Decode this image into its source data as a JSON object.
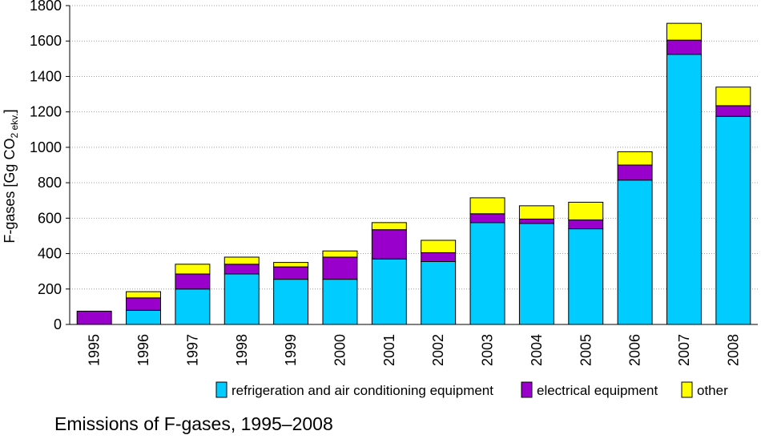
{
  "chart_data": {
    "type": "bar",
    "stacked": true,
    "categories": [
      "1995",
      "1996",
      "1997",
      "1998",
      "1999",
      "2000",
      "2001",
      "2002",
      "2003",
      "2004",
      "2005",
      "2006",
      "2007",
      "2008"
    ],
    "series": [
      {
        "name": "refrigeration and air conditioning equipment",
        "color": "#00ccff",
        "values": [
          0,
          80,
          200,
          285,
          255,
          255,
          370,
          355,
          575,
          570,
          540,
          815,
          1525,
          1175
        ]
      },
      {
        "name": "electrical equipment",
        "color": "#9900cc",
        "values": [
          75,
          70,
          85,
          55,
          70,
          125,
          165,
          50,
          50,
          25,
          50,
          85,
          80,
          60
        ]
      },
      {
        "name": "other",
        "color": "#ffff00",
        "values": [
          0,
          35,
          55,
          40,
          25,
          35,
          40,
          70,
          90,
          75,
          100,
          75,
          95,
          105
        ]
      }
    ],
    "ylabel": {
      "main": "F-gases [Gg CO",
      "sub": "2 ekv.",
      "close": "]"
    },
    "ylim": [
      0,
      1800
    ],
    "yticks": [
      0,
      200,
      400,
      600,
      800,
      1000,
      1200,
      1400,
      1600,
      1800
    ],
    "grid": true,
    "legend_position": "bottom"
  },
  "caption": "Emissions of F-gases, 1995–2008"
}
